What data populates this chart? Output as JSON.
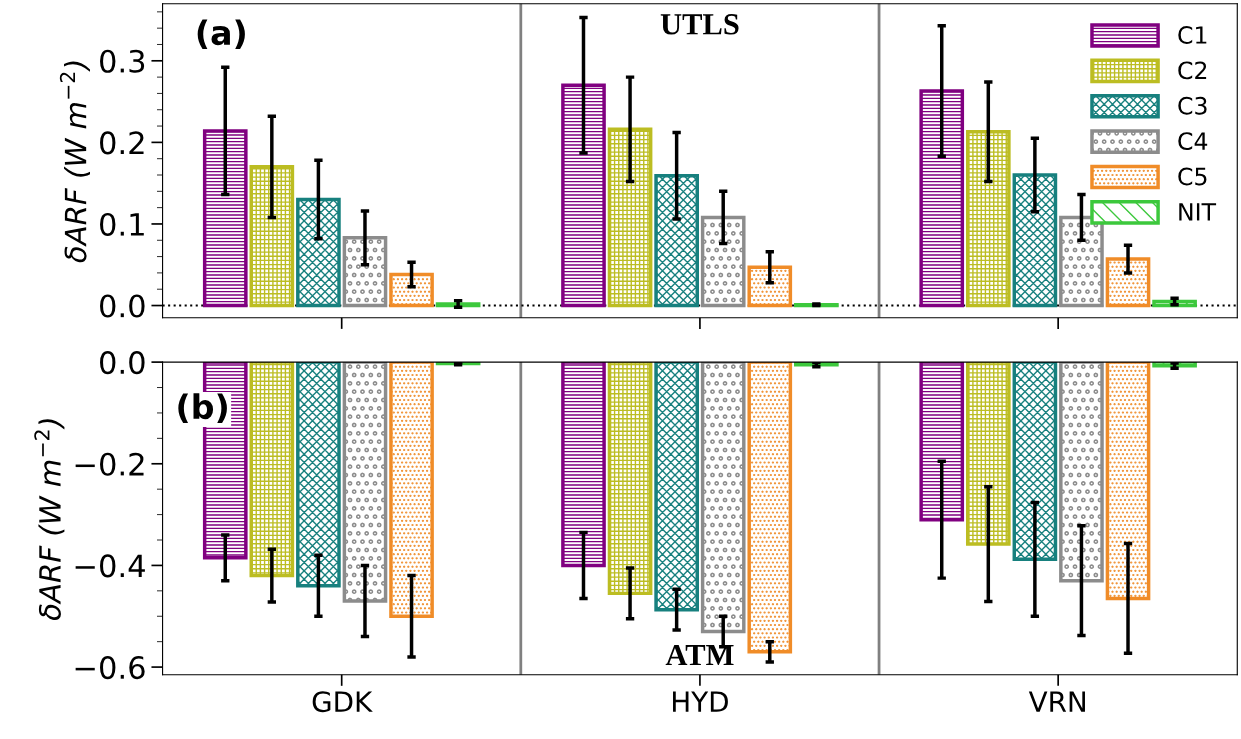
{
  "chart_data": [
    {
      "type": "bar",
      "categories": [
        null,
        null,
        null
      ],
      "ylabel": "δARF (W m$^{−2}$)",
      "ylim": [
        -0.015,
        0.37
      ],
      "yticks": [
        {
          "value": 0,
          "label": "0.0"
        },
        0.1,
        0.2,
        0.3
      ],
      "tick_labels": "y",
      "legend": "top right",
      "grid": false,
      "annotations": [
        "(a)",
        "UTLS"
      ],
      "ref_lines": [
        {
          "axis": "y",
          "value": 0,
          "color": "#000000",
          "line_style": "dotted"
        }
      ],
      "series": [
        {
          "name": "C1",
          "color": "#800080",
          "values": [
            0.214,
            0.27,
            0.263
          ],
          "errors": [
            0.078,
            0.083,
            0.08
          ]
        },
        {
          "name": "C2",
          "color": "#bcbd22",
          "values": [
            0.17,
            0.216,
            0.213
          ],
          "errors": [
            0.062,
            0.064,
            0.061
          ]
        },
        {
          "name": "C3",
          "color": "#17807e",
          "values": [
            0.13,
            0.159,
            0.16
          ],
          "errors": [
            0.048,
            0.053,
            0.045
          ]
        },
        {
          "name": "C4",
          "color": "#8c8c8c",
          "values": [
            0.083,
            0.108,
            0.108
          ],
          "errors": [
            0.033,
            0.032,
            0.028
          ]
        },
        {
          "name": "C5",
          "color": "#f08c28",
          "values": [
            0.038,
            0.047,
            0.057
          ],
          "errors": [
            0.015,
            0.019,
            0.017
          ]
        },
        {
          "name": "NIT",
          "color": "#3cc83c",
          "values": [
            0.002,
            0.001,
            0.005
          ],
          "errors": [
            0.004,
            0.001,
            0.004
          ]
        }
      ]
    },
    {
      "type": "bar",
      "categories": [
        "GDK",
        "HYD",
        "VRN"
      ],
      "ylabel": "δARF (W m$^{−2}$)",
      "ylim": [
        -0.615,
        0
      ],
      "yticks": [
        {
          "value": 0,
          "label": "0.0"
        },
        {
          "value": -0.2,
          "label": "−0.2"
        },
        {
          "value": -0.4,
          "label": "−0.4"
        },
        {
          "value": -0.6,
          "label": "−0.6"
        }
      ],
      "grid": false,
      "annotations": [
        "(b)",
        "ATM"
      ],
      "series": [
        {
          "color": "#800080",
          "values": [
            -0.385,
            -0.4,
            -0.31
          ],
          "errors": [
            0.045,
            0.065,
            0.115
          ]
        },
        {
          "color": "#bcbd22",
          "values": [
            -0.42,
            -0.455,
            -0.358
          ],
          "errors": [
            0.052,
            0.05,
            0.113
          ]
        },
        {
          "color": "#17807e",
          "values": [
            -0.44,
            -0.487,
            -0.388
          ],
          "errors": [
            0.06,
            0.04,
            0.112
          ]
        },
        {
          "color": "#8c8c8c",
          "values": [
            -0.47,
            -0.53,
            -0.43
          ],
          "errors": [
            0.07,
            0.03,
            0.108
          ]
        },
        {
          "color": "#f08c28",
          "values": [
            -0.5,
            -0.57,
            -0.465
          ],
          "errors": [
            0.08,
            0.02,
            0.108
          ]
        },
        {
          "color": "#3cc83c",
          "values": [
            -0.003,
            -0.005,
            -0.007
          ],
          "errors": [
            0.002,
            0.004,
            0.005
          ]
        }
      ]
    }
  ]
}
